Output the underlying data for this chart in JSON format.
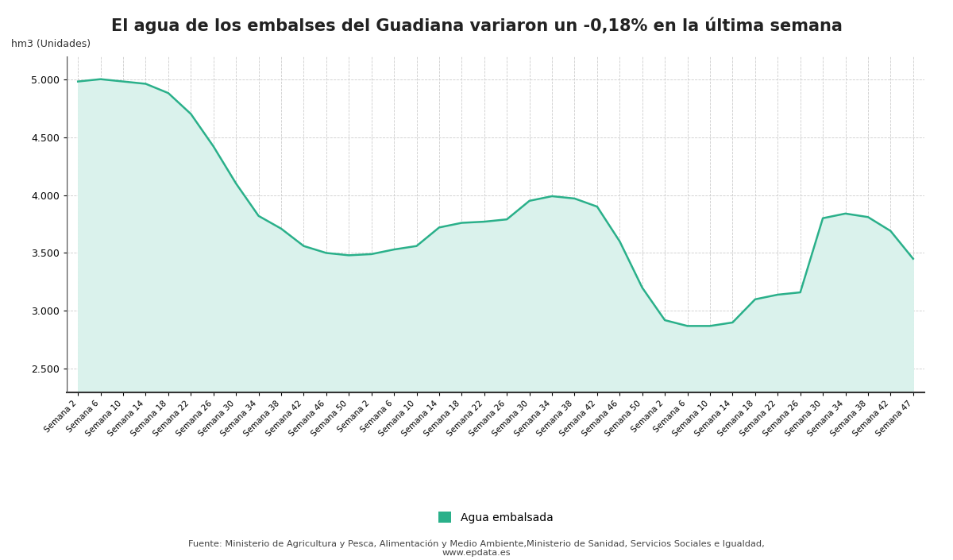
{
  "title": "El agua de los embalses del Guadiana variaron un -0,18% en la última semana",
  "ylabel": "hm3 (Unidades)",
  "ylim": [
    2300,
    5200
  ],
  "yticks": [
    2500,
    3000,
    3500,
    4000,
    4500,
    5000
  ],
  "line_color": "#2ab08a",
  "fill_color": "#daf2ec",
  "legend_label": "Agua embalsada",
  "source_text": "Fuente: Ministerio de Agricultura y Pesca, Alimentación y Medio Ambiente,Ministerio de Sanidad, Servicios Sociales e Igualdad,\nwww.epdata.es",
  "x_labels": [
    "Semana 2",
    "Semana 6",
    "Semana 10",
    "Semana 14",
    "Semana 18",
    "Semana 22",
    "Semana 26",
    "Semana 30",
    "Semana 34",
    "Semana 38",
    "Semana 42",
    "Semana 46",
    "Semana 50",
    "Semana 2",
    "Semana 6",
    "Semana 10",
    "Semana 14",
    "Semana 18",
    "Semana 22",
    "Semana 26",
    "Semana 30",
    "Semana 34",
    "Semana 38",
    "Semana 42",
    "Semana 46",
    "Semana 50",
    "Semana 2",
    "Semana 6",
    "Semana 10",
    "Semana 14",
    "Semana 18",
    "Semana 22",
    "Semana 26",
    "Semana 30",
    "Semana 34",
    "Semana 38",
    "Semana 42",
    "Semana 47"
  ],
  "values": [
    4980,
    5000,
    4980,
    4960,
    4880,
    4700,
    4420,
    4100,
    3820,
    3710,
    3560,
    3500,
    3480,
    3490,
    3530,
    3560,
    3720,
    3760,
    3770,
    3790,
    3950,
    3990,
    3970,
    3900,
    3600,
    3200,
    2920,
    2870,
    2870,
    2900,
    3100,
    3140,
    3160,
    3800,
    3840,
    3810,
    3690,
    3450
  ],
  "background_color": "#ffffff",
  "grid_color": "#cccccc"
}
